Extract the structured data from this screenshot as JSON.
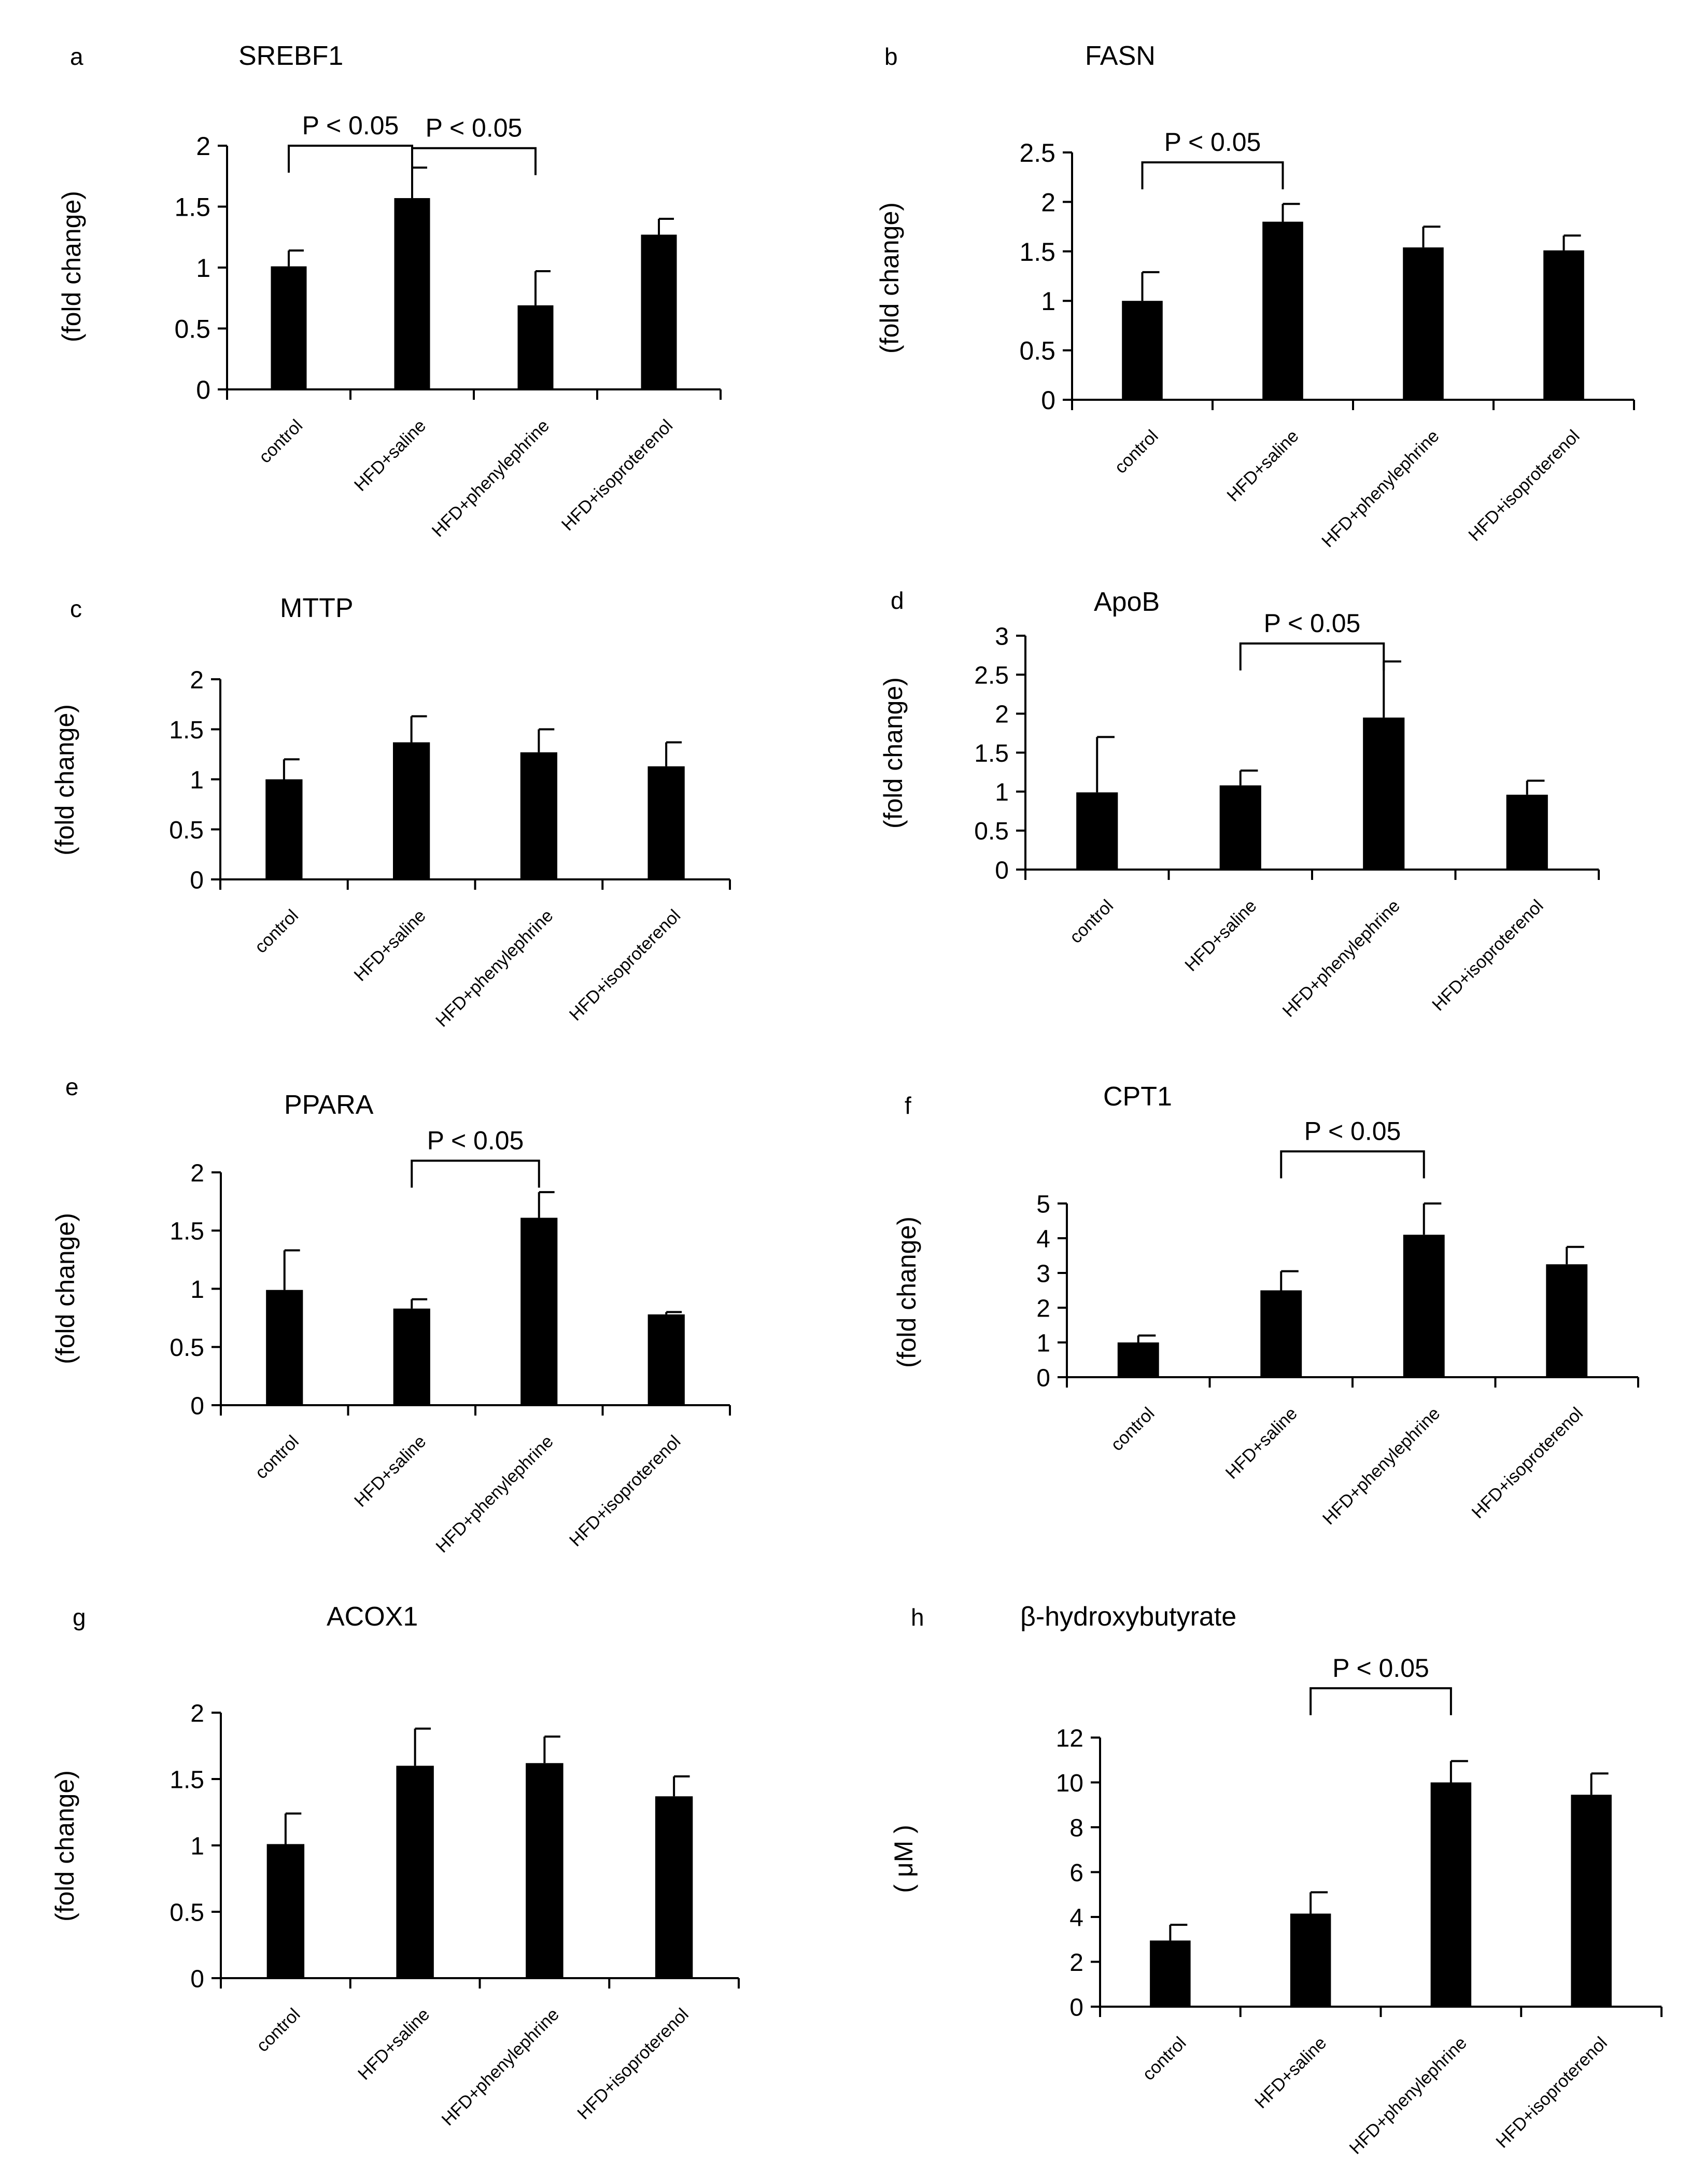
{
  "figure": {
    "categories": [
      "control",
      "HFD+saline",
      "HFD+phenylephrine",
      "HFD+isoproterenol"
    ]
  },
  "chart_data": [
    {
      "panel": "a",
      "title": "SREBF1",
      "type": "bar",
      "ylabel": "(fold change)",
      "categories": [
        "control",
        "HFD+saline",
        "HFD+phenylephrine",
        "HFD+isoproterenol"
      ],
      "values": [
        1.01,
        1.57,
        0.69,
        1.27
      ],
      "errors": [
        0.13,
        0.25,
        0.28,
        0.13
      ],
      "ylim": [
        0,
        2
      ],
      "yticks": [
        "0",
        "0.5",
        "1",
        "1.5",
        "2"
      ],
      "ytick_values": [
        0,
        0.5,
        1,
        1.5,
        2
      ],
      "annotations": [
        {
          "text": "P < 0.05",
          "from": 0,
          "to": 1,
          "y": 2.0
        },
        {
          "text": "P < 0.05",
          "from": 1,
          "to": 2,
          "y": 1.98
        }
      ]
    },
    {
      "panel": "b",
      "title": "FASN",
      "type": "bar",
      "ylabel": "(fold change)",
      "categories": [
        "control",
        "HFD+saline",
        "HFD+phenylephrine",
        "HFD+isoproterenol"
      ],
      "values": [
        1.0,
        1.8,
        1.54,
        1.51
      ],
      "errors": [
        0.29,
        0.18,
        0.21,
        0.15
      ],
      "ylim": [
        0,
        2.5
      ],
      "yticks": [
        "0",
        "0.5",
        "1",
        "1.5",
        "2",
        "2.5"
      ],
      "ytick_values": [
        0,
        0.5,
        1,
        1.5,
        2,
        2.5
      ],
      "annotations": [
        {
          "text": "P < 0.05",
          "from": 0,
          "to": 1,
          "y": 2.4
        }
      ]
    },
    {
      "panel": "c",
      "title": "MTTP",
      "type": "bar",
      "ylabel": "(fold change)",
      "categories": [
        "control",
        "HFD+saline",
        "HFD+phenylephrine",
        "HFD+isoproterenol"
      ],
      "values": [
        1.0,
        1.37,
        1.27,
        1.13
      ],
      "errors": [
        0.2,
        0.26,
        0.23,
        0.24
      ],
      "ylim": [
        0,
        2
      ],
      "yticks": [
        "0",
        "0.5",
        "1",
        "1.5",
        "2"
      ],
      "ytick_values": [
        0,
        0.5,
        1,
        1.5,
        2
      ],
      "annotations": []
    },
    {
      "panel": "d",
      "title": "ApoB",
      "type": "bar",
      "ylabel": "(fold change)",
      "categories": [
        "control",
        "HFD+saline",
        "HFD+phenylephrine",
        "HFD+isoproterenol"
      ],
      "values": [
        0.99,
        1.08,
        1.95,
        0.96
      ],
      "errors": [
        0.71,
        0.19,
        0.72,
        0.18
      ],
      "ylim": [
        0,
        3
      ],
      "yticks": [
        "0",
        "0.5",
        "1",
        "1.5",
        "2",
        "2.5",
        "3"
      ],
      "ytick_values": [
        0,
        0.5,
        1,
        1.5,
        2,
        2.5,
        3
      ],
      "annotations": [
        {
          "text": "P < 0.05",
          "from": 1,
          "to": 2,
          "y": 2.9
        }
      ]
    },
    {
      "panel": "e",
      "title": "PPARA",
      "type": "bar",
      "ylabel": "(fold change)",
      "categories": [
        "control",
        "HFD+saline",
        "HFD+phenylephrine",
        "HFD+isoproterenol"
      ],
      "values": [
        0.99,
        0.83,
        1.61,
        0.78
      ],
      "errors": [
        0.34,
        0.08,
        0.22,
        0.02
      ],
      "ylim": [
        0,
        2
      ],
      "yticks": [
        "0",
        "0.5",
        "1",
        "1.5",
        "2"
      ],
      "ytick_values": [
        0,
        0.5,
        1,
        1.5,
        2
      ],
      "annotations": [
        {
          "text": "P < 0.05",
          "from": 1,
          "to": 2,
          "y": 2.1
        }
      ]
    },
    {
      "panel": "f",
      "title": "CPT1",
      "type": "bar",
      "ylabel": "(fold change)",
      "categories": [
        "control",
        "HFD+saline",
        "HFD+phenylephrine",
        "HFD+isoproterenol"
      ],
      "values": [
        1.0,
        2.5,
        4.1,
        3.25
      ],
      "errors": [
        0.2,
        0.55,
        0.9,
        0.5
      ],
      "ylim": [
        0,
        5
      ],
      "yticks": [
        "0",
        "1",
        "2",
        "3",
        "4",
        "5"
      ],
      "ytick_values": [
        0,
        1,
        2,
        3,
        4,
        5
      ],
      "annotations": [
        {
          "text": "P < 0.05",
          "from": 1,
          "to": 2,
          "y": 6.5
        }
      ]
    },
    {
      "panel": "g",
      "title": "ACOX1",
      "type": "bar",
      "ylabel": "(fold change)",
      "categories": [
        "control",
        "HFD+saline",
        "HFD+phenylephrine",
        "HFD+isoproterenol"
      ],
      "values": [
        1.01,
        1.6,
        1.62,
        1.37
      ],
      "errors": [
        0.23,
        0.28,
        0.2,
        0.15
      ],
      "ylim": [
        0,
        2
      ],
      "yticks": [
        "0",
        "0.5",
        "1",
        "1.5",
        "2"
      ],
      "ytick_values": [
        0,
        0.5,
        1,
        1.5,
        2
      ],
      "annotations": []
    },
    {
      "panel": "h",
      "title": "β-hydroxybutyrate",
      "type": "bar",
      "ylabel": "( μM )",
      "categories": [
        "control",
        "HFD+saline",
        "HFD+phenylephrine",
        "HFD+isoproterenol"
      ],
      "values": [
        2.95,
        4.15,
        10.0,
        9.45
      ],
      "errors": [
        0.7,
        0.95,
        0.95,
        0.95
      ],
      "ylim": [
        0,
        12
      ],
      "yticks": [
        "0",
        "2",
        "4",
        "6",
        "8",
        "10",
        "12"
      ],
      "ytick_values": [
        0,
        2,
        4,
        6,
        8,
        10,
        12
      ],
      "annotations": [
        {
          "text": "P < 0.05",
          "from": 1,
          "to": 2,
          "y": 14.2
        }
      ]
    }
  ]
}
